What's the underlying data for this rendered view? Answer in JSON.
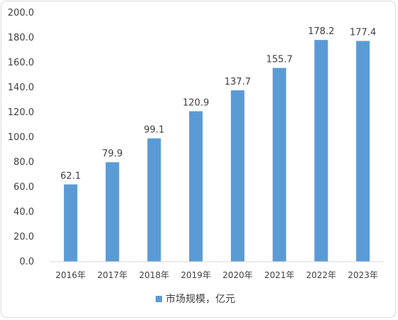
{
  "chart_data": {
    "type": "bar",
    "categories": [
      "2016年",
      "2017年",
      "2018年",
      "2019年",
      "2020年",
      "2021年",
      "2022年",
      "2023年"
    ],
    "series": [
      {
        "name": "市场规模，亿元",
        "values": [
          62.1,
          79.9,
          99.1,
          120.9,
          137.7,
          155.7,
          178.2,
          177.4
        ],
        "color": "#5b9bd5"
      }
    ],
    "value_labels": [
      "62.1",
      "79.9",
      "99.1",
      "120.9",
      "137.7",
      "155.7",
      "178.2",
      "177.4"
    ],
    "y_ticks": [
      "0.0",
      "20.0",
      "40.0",
      "60.0",
      "80.0",
      "100.0",
      "120.0",
      "140.0",
      "160.0",
      "180.0",
      "200.0"
    ],
    "ylim": [
      0,
      200
    ],
    "grid": false,
    "legend_position": "bottom-center",
    "title": "",
    "xlabel": "",
    "ylabel": ""
  },
  "legend": {
    "label": "市场规模，亿元"
  },
  "colors": {
    "bar": "#5b9bd5",
    "axis": "#d9d9d9",
    "text": "#404040"
  }
}
